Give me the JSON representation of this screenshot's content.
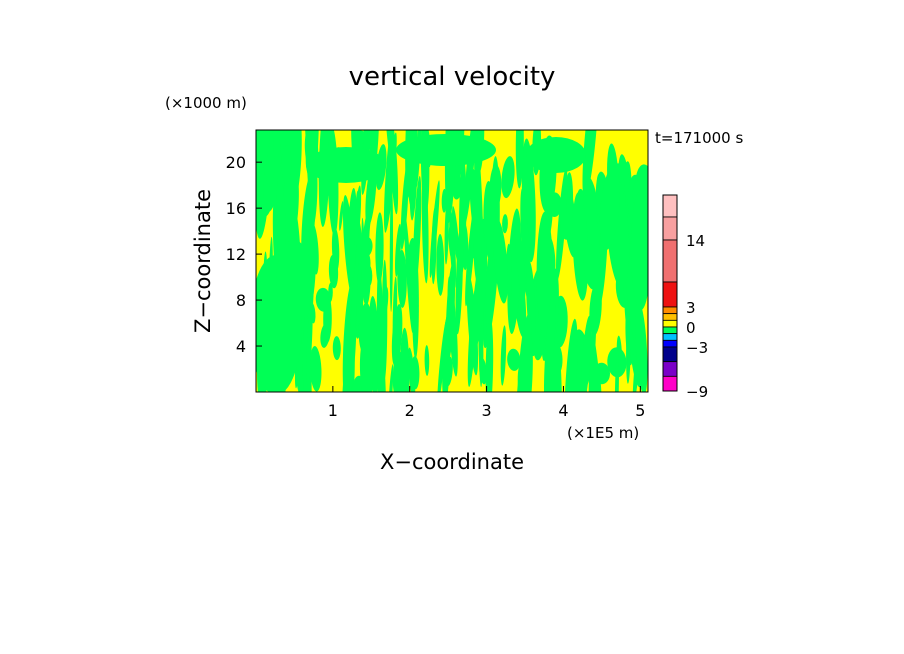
{
  "chart_data": {
    "type": "heatmap",
    "title": "vertical velocity",
    "xlabel": "X−coordinate",
    "ylabel": "Z−coordinate",
    "x_unit": "(×1E5 m)",
    "y_unit": "(×1000 m)",
    "time_label": "t=171000 s",
    "xlim": [
      0,
      5.1
    ],
    "ylim": [
      0,
      22.8
    ],
    "x_ticks": [
      1,
      2,
      3,
      4,
      5
    ],
    "y_ticks": [
      4,
      8,
      12,
      16,
      20
    ],
    "field_colors": {
      "positive": "#ffff00",
      "negative": "#00ff55"
    },
    "colorbar": {
      "labels": [
        "14",
        "3",
        "0",
        "−3",
        "−9"
      ],
      "label_values": [
        14,
        3,
        0,
        -3,
        -9
      ],
      "segments": [
        {
          "from": 17,
          "to": 20,
          "color": "#ffc0c0"
        },
        {
          "from": 14,
          "to": 17,
          "color": "#f8a0a0"
        },
        {
          "from": 8,
          "to": 14,
          "color": "#f07070"
        },
        {
          "from": 3,
          "to": 8,
          "color": "#ee1111"
        },
        {
          "from": 2,
          "to": 3,
          "color": "#ff8c00"
        },
        {
          "from": 1,
          "to": 2,
          "color": "#ffc000"
        },
        {
          "from": 0,
          "to": 1,
          "color": "#ffff00"
        },
        {
          "from": -1,
          "to": 0,
          "color": "#00ff55"
        },
        {
          "from": -2,
          "to": -1,
          "color": "#00c0ff"
        },
        {
          "from": -3,
          "to": -2,
          "color": "#0000ff"
        },
        {
          "from": -5,
          "to": -3,
          "color": "#00008b"
        },
        {
          "from": -7,
          "to": -5,
          "color": "#7b00c8"
        },
        {
          "from": -9,
          "to": -7,
          "color": "#ff00c8"
        }
      ]
    }
  }
}
